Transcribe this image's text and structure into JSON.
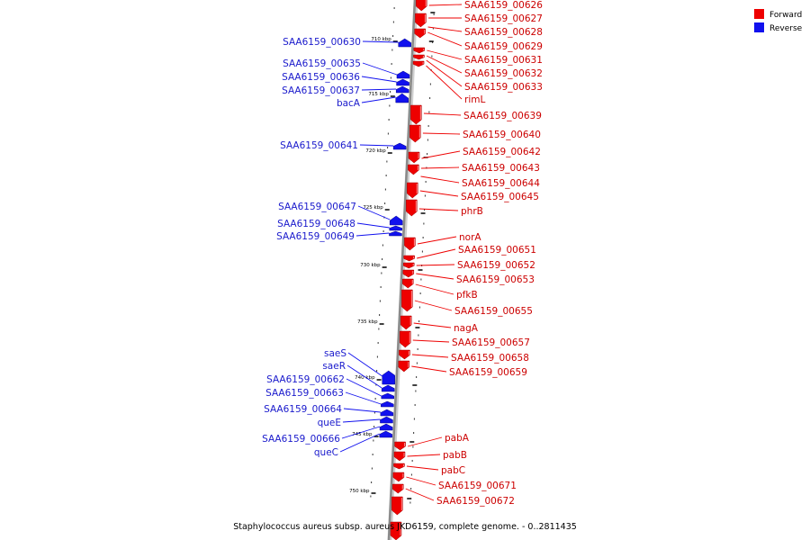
{
  "legend": [
    {
      "label": "Forward",
      "color": "#ee0000"
    },
    {
      "label": "Reverse",
      "color": "#1111ee"
    }
  ],
  "caption": "Staphylococcus aureus subsp. aureus JKD6159, complete genome. - 0..2811435",
  "colors": {
    "forward": "#ee0000",
    "reverse": "#1111ee",
    "backbone": "#8a8a8a"
  },
  "ticks": [
    "710 kbp",
    "715 kbp",
    "720 kbp",
    "725 kbp",
    "730 kbp",
    "735 kbp",
    "740 kbp",
    "745 kbp",
    "750 kbp"
  ],
  "forward_genes": [
    "SAA6159_00626",
    "SAA6159_00627",
    "SAA6159_00628",
    "SAA6159_00629",
    "SAA6159_00631",
    "SAA6159_00632",
    "SAA6159_00633",
    "rimL",
    "SAA6159_00639",
    "SAA6159_00640",
    "SAA6159_00642",
    "SAA6159_00643",
    "SAA6159_00644",
    "SAA6159_00645",
    "phrB",
    "norA",
    "SAA6159_00651",
    "SAA6159_00652",
    "SAA6159_00653",
    "pfkB",
    "SAA6159_00655",
    "nagA",
    "SAA6159_00657",
    "SAA6159_00658",
    "SAA6159_00659",
    "pabA",
    "pabB",
    "pabC",
    "SAA6159_00671",
    "SAA6159_00672"
  ],
  "reverse_genes": [
    "SAA6159_00630",
    "SAA6159_00635",
    "SAA6159_00636",
    "SAA6159_00637",
    "bacA",
    "SAA6159_00641",
    "SAA6159_00647",
    "SAA6159_00648",
    "SAA6159_00649",
    "saeS",
    "saeR",
    "SAA6159_00662",
    "SAA6159_00663",
    "SAA6159_00664",
    "queE",
    "SAA6159_00666",
    "queC"
  ]
}
